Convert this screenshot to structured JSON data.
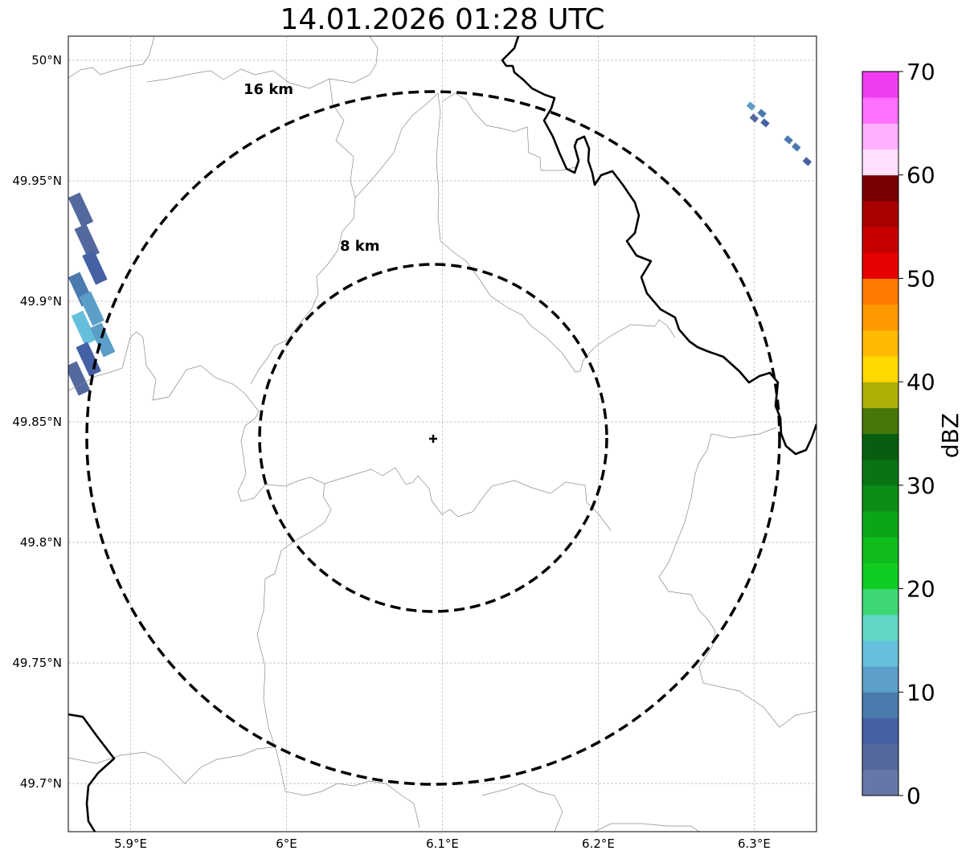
{
  "title": "14.01.2026 01:28 UTC",
  "map": {
    "lon_range": [
      5.86,
      6.34
    ],
    "lat_range": [
      49.68,
      50.01
    ],
    "lon_ticks": [
      5.9,
      6.0,
      6.1,
      6.2,
      6.3
    ],
    "lon_tick_labels": [
      "5.9°E",
      "6°E",
      "6.1°E",
      "6.2°E",
      "6.3°E"
    ],
    "lat_ticks": [
      50.0,
      49.95,
      49.9,
      49.85,
      49.8,
      49.75,
      49.7
    ],
    "lat_tick_labels": [
      "50°N",
      "49.95°N",
      "49.9°N",
      "49.85°N",
      "49.8°N",
      "49.75°N",
      "49.7°N"
    ],
    "gridlines": true
  },
  "radar_site": {
    "lon": 6.095,
    "lat": 49.843
  },
  "range_rings": [
    {
      "label": "8 km",
      "radius_km": 8
    },
    {
      "label": "16 km",
      "radius_km": 16
    }
  ],
  "colorbar": {
    "label": "dBZ",
    "tick_labels": [
      "0",
      "10",
      "20",
      "30",
      "40",
      "50",
      "60",
      "70"
    ],
    "colors": [
      "#6577a8",
      "#53699e",
      "#4461a5",
      "#4a7aae",
      "#5b9ec7",
      "#67c0db",
      "#60d7c5",
      "#3dd873",
      "#10cc20",
      "#10bc1c",
      "#0da518",
      "#0c8d16",
      "#0a7414",
      "#075e10",
      "#47770a",
      "#adb007",
      "#ffd800",
      "#ffb900",
      "#ff9900",
      "#ff7a00",
      "#e60000",
      "#c60000",
      "#a80000",
      "#780000",
      "#ffe0ff",
      "#ffb0ff",
      "#ff70ff",
      "#f03cf0"
    ]
  },
  "echoes_west": [
    {
      "lon": 5.868,
      "lat": 49.938,
      "color": "#53699e"
    },
    {
      "lon": 5.872,
      "lat": 49.925,
      "color": "#53699e"
    },
    {
      "lon": 5.877,
      "lat": 49.914,
      "color": "#4461a5"
    },
    {
      "lon": 5.868,
      "lat": 49.905,
      "color": "#4a7aae"
    },
    {
      "lon": 5.875,
      "lat": 49.897,
      "color": "#5b9ec7"
    },
    {
      "lon": 5.87,
      "lat": 49.889,
      "color": "#67c0db"
    },
    {
      "lon": 5.882,
      "lat": 49.884,
      "color": "#5b9ec7"
    },
    {
      "lon": 5.873,
      "lat": 49.876,
      "color": "#4461a5"
    },
    {
      "lon": 5.866,
      "lat": 49.868,
      "color": "#53699e"
    }
  ],
  "echoes_east": [
    {
      "lon": 6.298,
      "lat": 49.981,
      "color": "#5b9ec7"
    },
    {
      "lon": 6.305,
      "lat": 49.978,
      "color": "#4a7aae"
    },
    {
      "lon": 6.3,
      "lat": 49.976,
      "color": "#53699e"
    },
    {
      "lon": 6.307,
      "lat": 49.974,
      "color": "#4461a5"
    },
    {
      "lon": 6.322,
      "lat": 49.967,
      "color": "#4a7aae"
    },
    {
      "lon": 6.327,
      "lat": 49.964,
      "color": "#4a7aae"
    },
    {
      "lon": 6.334,
      "lat": 49.958,
      "color": "#4461a5"
    }
  ]
}
